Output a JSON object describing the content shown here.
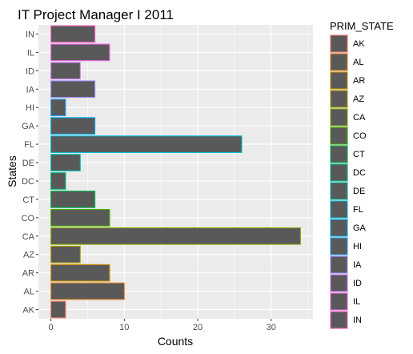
{
  "chart_data": {
    "type": "bar",
    "orientation": "horizontal",
    "title": "IT Project Manager I 2011",
    "xlabel": "Counts",
    "ylabel": "States",
    "xlim": [
      -1.7,
      35.7
    ],
    "xticks": [
      0,
      10,
      20,
      30
    ],
    "grid": true,
    "legend_position": "right",
    "legend_title": "PRIM_STATE",
    "bar_fill": "#595959",
    "panel_background": "#ebebeb",
    "categories": [
      "AK",
      "AL",
      "AR",
      "AZ",
      "CA",
      "CO",
      "CT",
      "DC",
      "DE",
      "FL",
      "GA",
      "HI",
      "IA",
      "ID",
      "IL",
      "IN"
    ],
    "values": [
      2,
      10,
      8,
      4,
      34,
      8,
      6,
      2,
      4,
      26,
      6,
      2,
      6,
      4,
      8,
      6
    ],
    "colors": [
      "#F8766D",
      "#E7851E",
      "#D09400",
      "#B2A100",
      "#89AC00",
      "#45B500",
      "#00BC51",
      "#00C087",
      "#00C0B2",
      "#00BCD6",
      "#00B3F2",
      "#29A3FF",
      "#9C8DFF",
      "#D277FF",
      "#F166E8",
      "#FF61C7"
    ]
  }
}
